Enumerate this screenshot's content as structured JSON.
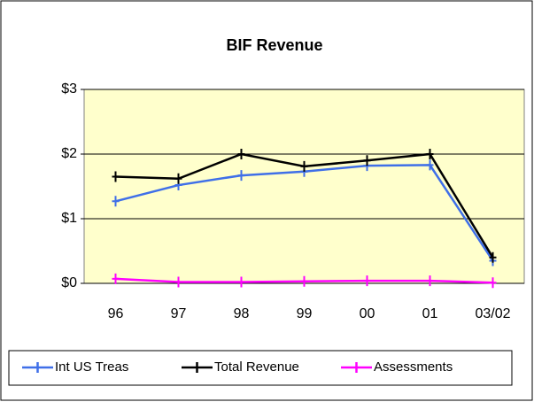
{
  "chart_data": {
    "type": "line",
    "title": "BIF Revenue",
    "categories": [
      "96",
      "97",
      "98",
      "99",
      "00",
      "01",
      "03/02"
    ],
    "series": [
      {
        "name": "Int US Treas",
        "color": "#3f6fe8",
        "values": [
          1.27,
          1.52,
          1.67,
          1.73,
          1.82,
          1.83,
          0.35
        ]
      },
      {
        "name": "Total Revenue",
        "color": "#000000",
        "values": [
          1.65,
          1.62,
          2.0,
          1.81,
          1.9,
          2.0,
          0.4
        ]
      },
      {
        "name": "Assessments",
        "color": "#ff00ff",
        "values": [
          0.07,
          0.02,
          0.02,
          0.03,
          0.04,
          0.04,
          0.01
        ]
      }
    ],
    "ylim": [
      0,
      3
    ],
    "yticks": [
      {
        "value": 0,
        "label": "$0"
      },
      {
        "value": 1,
        "label": "$1"
      },
      {
        "value": 2,
        "label": "$2"
      },
      {
        "value": 3,
        "label": "$3"
      }
    ],
    "grid": true,
    "plot_background": "#ffffcc",
    "legend": "bottom"
  }
}
